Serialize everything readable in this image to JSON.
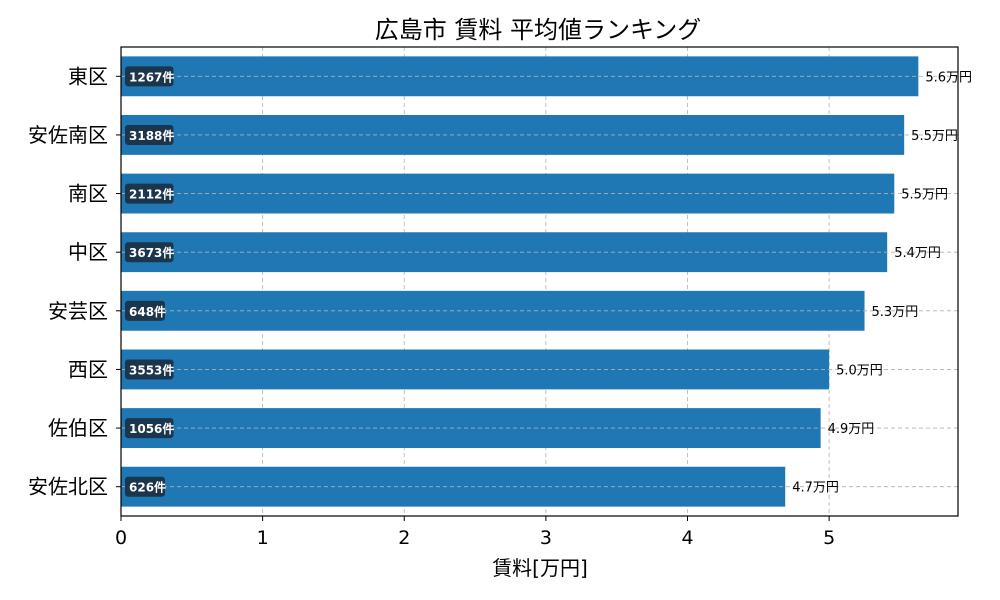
{
  "chart_data": {
    "type": "bar",
    "orientation": "horizontal",
    "title": "広島市 賃料 平均値ランキング",
    "xlabel": "賃料[万円]",
    "ylabel": "",
    "xlim": [
      0,
      5.91
    ],
    "xticks": [
      0,
      1,
      2,
      3,
      4,
      5
    ],
    "grid": true,
    "bar_color": "#1f77b4",
    "categories": [
      "東区",
      "安佐南区",
      "南区",
      "中区",
      "安芸区",
      "西区",
      "佐伯区",
      "安佐北区"
    ],
    "values": [
      5.63,
      5.53,
      5.46,
      5.41,
      5.25,
      5.0,
      4.94,
      4.69
    ],
    "value_labels": [
      "5.6万円",
      "5.5万円",
      "5.5万円",
      "5.4万円",
      "5.3万円",
      "5.0万円",
      "4.9万円",
      "4.7万円"
    ],
    "counts": [
      "1267件",
      "3188件",
      "2112件",
      "3673件",
      "648件",
      "3553件",
      "1056件",
      "626件"
    ]
  }
}
